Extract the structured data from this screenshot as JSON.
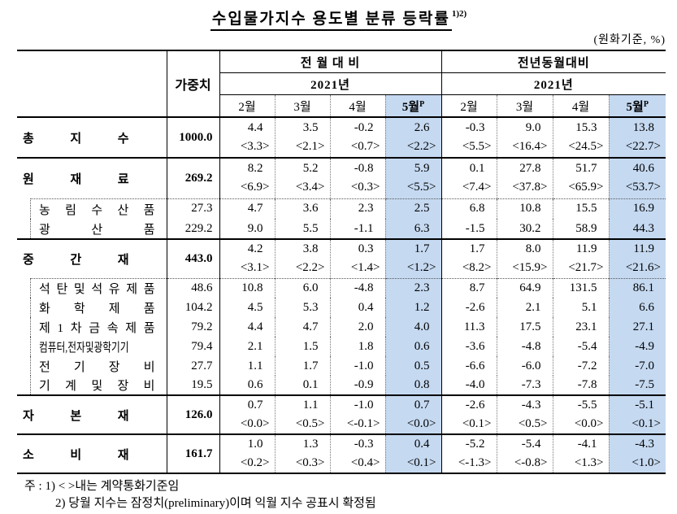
{
  "title": {
    "text": "수입물가지수 용도별 분류 등락률",
    "superscript": "1)2)"
  },
  "unit_note": "(원화기준, %)",
  "colors": {
    "highlight": "#c5d9f1"
  },
  "table": {
    "weight_header": "가중치",
    "groups": [
      {
        "label": "전 월 대 비",
        "year": "2021년",
        "months": [
          "2월",
          "3월",
          "4월",
          "5월"
        ],
        "prelim_suffix": "P"
      },
      {
        "label": "전년동월대비",
        "year": "2021년",
        "months": [
          "2월",
          "3월",
          "4월",
          "5월"
        ],
        "prelim_suffix": "P"
      }
    ],
    "rows": [
      {
        "label": "총 지 수",
        "type": "main",
        "weight": "1000.0",
        "mom": [
          "4.4",
          "3.5",
          "-0.2",
          "2.6"
        ],
        "mom_contract": [
          "<3.3>",
          "<2.1>",
          "<0.7>",
          "<2.2>"
        ],
        "yoy": [
          "-0.3",
          "9.0",
          "15.3",
          "13.8"
        ],
        "yoy_contract": [
          "<5.5>",
          "<16.4>",
          "<24.5>",
          "<22.7>"
        ]
      },
      {
        "label": "원 재 료",
        "type": "main",
        "weight": "269.2",
        "mom": [
          "8.2",
          "5.2",
          "-0.8",
          "5.9"
        ],
        "mom_contract": [
          "<6.9>",
          "<3.4>",
          "<0.3>",
          "<5.5>"
        ],
        "yoy": [
          "0.1",
          "27.8",
          "51.7",
          "40.6"
        ],
        "yoy_contract": [
          "<7.4>",
          "<37.8>",
          "<65.9>",
          "<53.7>"
        ]
      },
      {
        "label": "농 림 수 산 품",
        "type": "sub-first",
        "weight": "27.3",
        "mom": [
          "4.7",
          "3.6",
          "2.3",
          "2.5"
        ],
        "yoy": [
          "6.8",
          "10.8",
          "15.5",
          "16.9"
        ]
      },
      {
        "label": "광 산 품",
        "type": "sub",
        "weight": "229.2",
        "mom": [
          "9.0",
          "5.5",
          "-1.1",
          "6.3"
        ],
        "yoy": [
          "-1.5",
          "30.2",
          "58.9",
          "44.3"
        ]
      },
      {
        "label": "중 간 재",
        "type": "main",
        "weight": "443.0",
        "mom": [
          "4.2",
          "3.8",
          "0.3",
          "1.7"
        ],
        "mom_contract": [
          "<3.1>",
          "<2.2>",
          "<1.4>",
          "<1.2>"
        ],
        "yoy": [
          "1.7",
          "8.0",
          "11.9",
          "11.9"
        ],
        "yoy_contract": [
          "<8.2>",
          "<15.9>",
          "<21.7>",
          "<21.6>"
        ]
      },
      {
        "label": "석 탄 및 석 유 제 품",
        "type": "sub-first",
        "weight": "48.6",
        "mom": [
          "10.8",
          "6.0",
          "-4.8",
          "2.3"
        ],
        "yoy": [
          "8.7",
          "64.9",
          "131.5",
          "86.1"
        ]
      },
      {
        "label": "화 학 제 품",
        "type": "sub",
        "weight": "104.2",
        "mom": [
          "4.5",
          "5.3",
          "0.4",
          "1.2"
        ],
        "yoy": [
          "-2.6",
          "2.1",
          "5.1",
          "6.6"
        ]
      },
      {
        "label": "제 1 차 금 속 제 품",
        "type": "sub",
        "weight": "79.2",
        "mom": [
          "4.4",
          "4.7",
          "2.0",
          "4.0"
        ],
        "yoy": [
          "11.3",
          "17.5",
          "23.1",
          "27.1"
        ]
      },
      {
        "label": "컴퓨터,전자및광학기기",
        "type": "sub",
        "condensed": true,
        "weight": "79.4",
        "mom": [
          "2.1",
          "1.5",
          "1.8",
          "0.6"
        ],
        "yoy": [
          "-3.6",
          "-4.8",
          "-5.4",
          "-4.9"
        ]
      },
      {
        "label": "전 기 장 비",
        "type": "sub",
        "weight": "27.7",
        "mom": [
          "1.1",
          "1.7",
          "-1.0",
          "0.5"
        ],
        "yoy": [
          "-6.6",
          "-6.0",
          "-7.2",
          "-7.0"
        ]
      },
      {
        "label": "기 계 및 장 비",
        "type": "sub",
        "weight": "19.5",
        "mom": [
          "0.6",
          "0.1",
          "-0.9",
          "0.8"
        ],
        "yoy": [
          "-4.0",
          "-7.3",
          "-7.8",
          "-7.5"
        ]
      },
      {
        "label": "자 본 재",
        "type": "main",
        "weight": "126.0",
        "mom": [
          "0.7",
          "1.1",
          "-1.0",
          "0.7"
        ],
        "mom_contract": [
          "<0.0>",
          "<0.5>",
          "<-0.1>",
          "<0.0>"
        ],
        "yoy": [
          "-2.6",
          "-4.3",
          "-5.5",
          "-5.1"
        ],
        "yoy_contract": [
          "<0.1>",
          "<0.5>",
          "<0.0>",
          "<0.1>"
        ]
      },
      {
        "label": "소 비 재",
        "type": "main",
        "weight": "161.7",
        "mom": [
          "1.0",
          "1.3",
          "-0.3",
          "0.4"
        ],
        "mom_contract": [
          "<0.2>",
          "<0.3>",
          "<0.4>",
          "<0.1>"
        ],
        "yoy": [
          "-5.2",
          "-5.4",
          "-4.1",
          "-4.3"
        ],
        "yoy_contract": [
          "<-1.3>",
          "<-0.8>",
          "<1.3>",
          "<1.0>"
        ]
      }
    ]
  },
  "footnotes": {
    "prefix": "주 :",
    "items": [
      "1) < >내는 계약통화기준임",
      "2) 당월 지수는 잠정치(preliminary)이며 익월 지수 공표시 확정됨"
    ]
  }
}
